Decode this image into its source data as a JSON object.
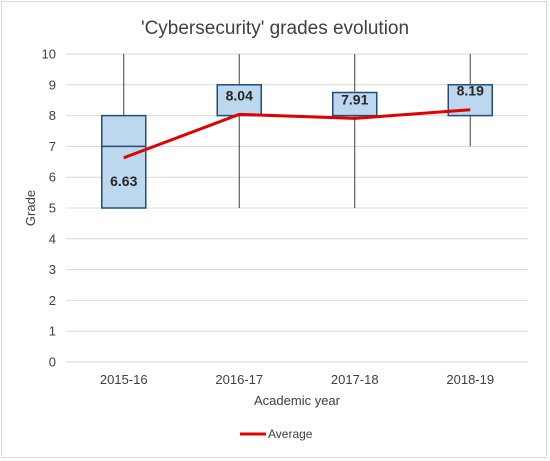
{
  "chart_data": {
    "type": "box",
    "title": "'Cybersecurity' grades evolution",
    "xlabel": "Academic year",
    "ylabel": "Grade",
    "ylim": [
      0,
      10
    ],
    "y_ticks": [
      "0",
      "1",
      "2",
      "3",
      "4",
      "5",
      "6",
      "7",
      "8",
      "9",
      "10"
    ],
    "grid": true,
    "categories": [
      "2015-16",
      "2016-17",
      "2017-18",
      "2018-19"
    ],
    "boxes": [
      {
        "min": 5,
        "q1": 5,
        "median": 7,
        "q3": 8,
        "max": 10
      },
      {
        "min": 5,
        "q1": 8,
        "median": 8,
        "q3": 9,
        "max": 10
      },
      {
        "min": 5,
        "q1": 8,
        "median": 8,
        "q3": 8.75,
        "max": 10
      },
      {
        "min": 7,
        "q1": 8,
        "median": 8,
        "q3": 9,
        "max": 10
      }
    ],
    "series": [
      {
        "name": "Average",
        "type": "line",
        "values": [
          6.63,
          8.04,
          7.91,
          8.19
        ]
      }
    ],
    "data_labels": [
      "6.63",
      "8.04",
      "7.91",
      "8.19"
    ],
    "legend": {
      "position": "bottom",
      "entries": [
        "Average"
      ]
    },
    "colors": {
      "box_fill": "#bdd7ee",
      "box_stroke": "#1f4e79",
      "average_line": "#e00000",
      "grid": "#d9d9d9"
    }
  }
}
